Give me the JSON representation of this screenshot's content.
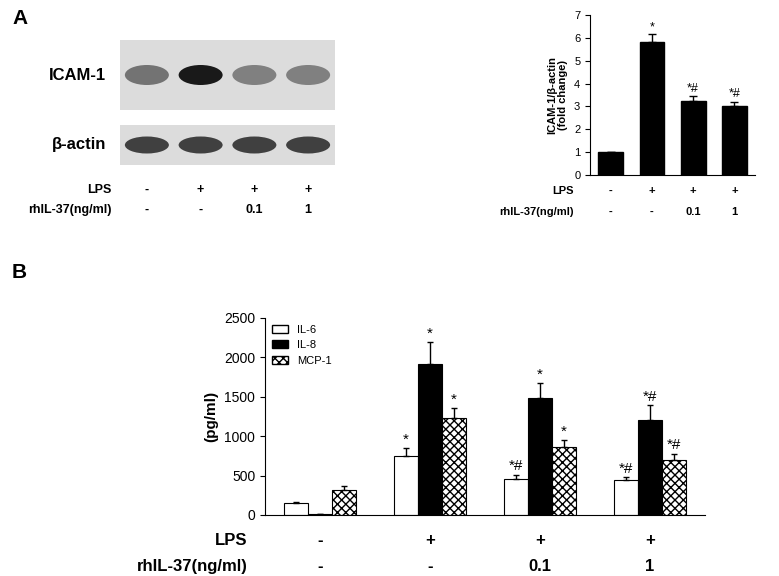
{
  "panel_labels": [
    "A",
    "B"
  ],
  "blot": {
    "rows": [
      {
        "label": "ICAM-1",
        "intensity": [
          0.55,
          0.9,
          0.5,
          0.5
        ]
      },
      {
        "label": "β-actin",
        "intensity": [
          0.75,
          0.75,
          0.75,
          0.75
        ]
      }
    ]
  },
  "treatments": [
    {
      "name": "LPS",
      "values": [
        "-",
        "+",
        "+",
        "+"
      ]
    },
    {
      "name": "rhIL-37(ng/ml)",
      "values": [
        "-",
        "-",
        "0.1",
        "1"
      ]
    }
  ],
  "chart_data": [
    {
      "type": "bar",
      "ylabel": "ICAM-1/β-actin\n(fold change)",
      "categories": [
        null,
        null,
        null,
        null
      ],
      "values": [
        1,
        5.8,
        3.25,
        3.0
      ],
      "errors": [
        0,
        0.35,
        0.2,
        0.2
      ],
      "annotations": [
        null,
        "*",
        "*#",
        "*#"
      ],
      "color": "#000000",
      "ylim": [
        0,
        7
      ],
      "yticks": [
        0,
        1,
        2,
        3,
        4,
        5,
        6,
        7
      ],
      "tick_labels": "y"
    },
    {
      "type": "bar",
      "ylabel": "(pg/ml)",
      "categories": [
        null,
        null,
        null,
        null
      ],
      "series": [
        {
          "name": "IL-6",
          "color": "#ffffff",
          "values": [
            150,
            750,
            460,
            440
          ],
          "errors": [
            20,
            100,
            50,
            40
          ],
          "annotations": [
            null,
            "*",
            "*#",
            "*#"
          ]
        },
        {
          "name": "IL-8",
          "color": "#000000",
          "values": [
            10,
            1910,
            1480,
            1200
          ],
          "errors": [
            5,
            280,
            190,
            190
          ],
          "annotations": [
            null,
            "*",
            "*",
            "*#"
          ]
        },
        {
          "name": "MCP-1",
          "color": "#ffffff",
          "values": [
            320,
            1230,
            860,
            700
          ],
          "errors": [
            50,
            130,
            90,
            80
          ],
          "annotations": [
            null,
            "*",
            "*",
            "*#"
          ]
        }
      ],
      "legend": "upper left",
      "ylim": [
        0,
        2500
      ],
      "yticks": [
        0,
        500,
        1000,
        1500,
        2000,
        2500
      ],
      "tick_labels": "y"
    }
  ]
}
